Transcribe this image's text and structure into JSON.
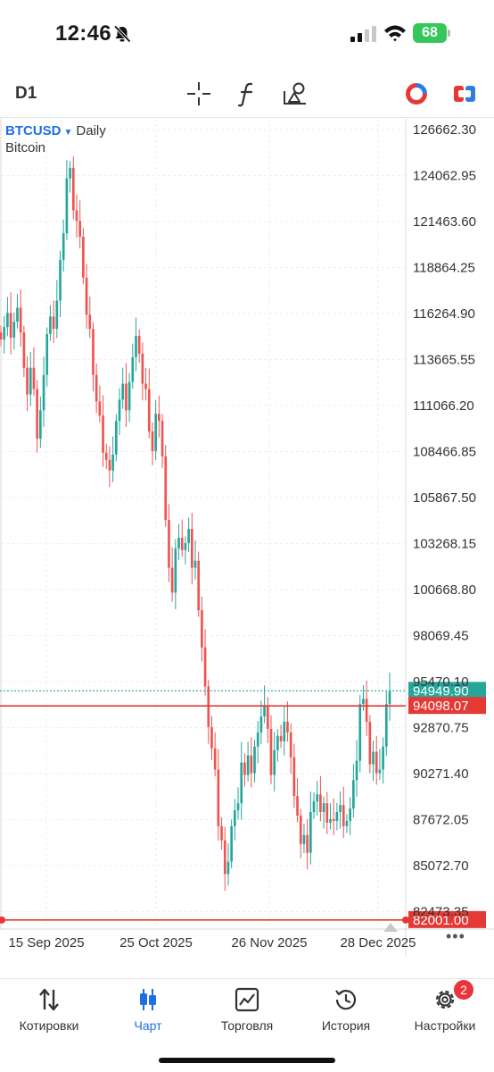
{
  "status_bar": {
    "time": "12:46",
    "battery": "68",
    "icons": [
      "bell-slash-icon",
      "cellular-signal-icon",
      "wifi-icon",
      "battery-icon"
    ]
  },
  "toolbar": {
    "timeframe": "D1",
    "icons": [
      "crosshair-icon",
      "indicator-f-icon",
      "drawing-tools-icon",
      "chart-color-icon",
      "trade-toggle-icon"
    ]
  },
  "chart": {
    "symbol": "BTCUSD",
    "timeframe": "Daily",
    "description": "Bitcoin",
    "colors": {
      "up": "#26a69a",
      "down": "#ef5350",
      "line": "#e53935",
      "bid": "#26a69a"
    }
  },
  "chart_data": {
    "type": "candlestick",
    "yaxis_ticks": [
      "126662.30",
      "124062.95",
      "121463.60",
      "118864.25",
      "116264.90",
      "113665.55",
      "111066.20",
      "108466.85",
      "105867.50",
      "103268.15",
      "100668.80",
      "98069.45",
      "95470.10",
      "92870.75",
      "90271.40",
      "87672.05",
      "85072.70",
      "82473.35"
    ],
    "xaxis_ticks": [
      "15 Sep 2025",
      "25 Oct 2025",
      "26 Nov 2025",
      "28 Dec 2025"
    ],
    "ylim": [
      82000,
      127000
    ],
    "bid_price": "94949.90",
    "horizontal_lines": [
      "94098.07",
      "82001.00"
    ],
    "closes": [
      114800,
      115500,
      116300,
      114900,
      115800,
      116600,
      115200,
      113200,
      111700,
      113200,
      112000,
      109200,
      110800,
      112800,
      115100,
      116100,
      115400,
      117000,
      119300,
      120800,
      123900,
      124500,
      122100,
      121500,
      120600,
      118300,
      116200,
      115400,
      112800,
      111300,
      110500,
      108400,
      108000,
      107400,
      108300,
      110200,
      111400,
      112300,
      110800,
      112400,
      113800,
      115000,
      114000,
      112300,
      112000,
      109600,
      108500,
      110600,
      110200,
      108200,
      104600,
      101900,
      100500,
      103000,
      103600,
      102900,
      103300,
      104100,
      101900,
      102300,
      99500,
      97400,
      95200,
      92900,
      91700,
      90500,
      87300,
      86500,
      84600,
      85300,
      87300,
      88200,
      88600,
      90900,
      90200,
      91300,
      90300,
      91800,
      92600,
      93500,
      94100,
      92800,
      90200,
      91600,
      92400,
      92100,
      93200,
      92600,
      91200,
      89000,
      87900,
      86300,
      86800,
      85800,
      88100,
      88700,
      89100,
      88100,
      88600,
      87500,
      87700,
      87600,
      88100,
      88500,
      87300,
      87600,
      88300,
      89900,
      91000,
      94200,
      94500,
      93200,
      90800,
      91500,
      90300,
      90500,
      91800,
      94200,
      94950
    ]
  },
  "tabs": [
    {
      "label": "Котировки",
      "icon": "quotes-arrows-icon"
    },
    {
      "label": "Чарт",
      "icon": "candlestick-icon"
    },
    {
      "label": "Торговля",
      "icon": "trade-chart-icon"
    },
    {
      "label": "История",
      "icon": "history-clock-icon"
    },
    {
      "label": "Настройки",
      "icon": "settings-gear-icon",
      "badge": "2"
    }
  ]
}
